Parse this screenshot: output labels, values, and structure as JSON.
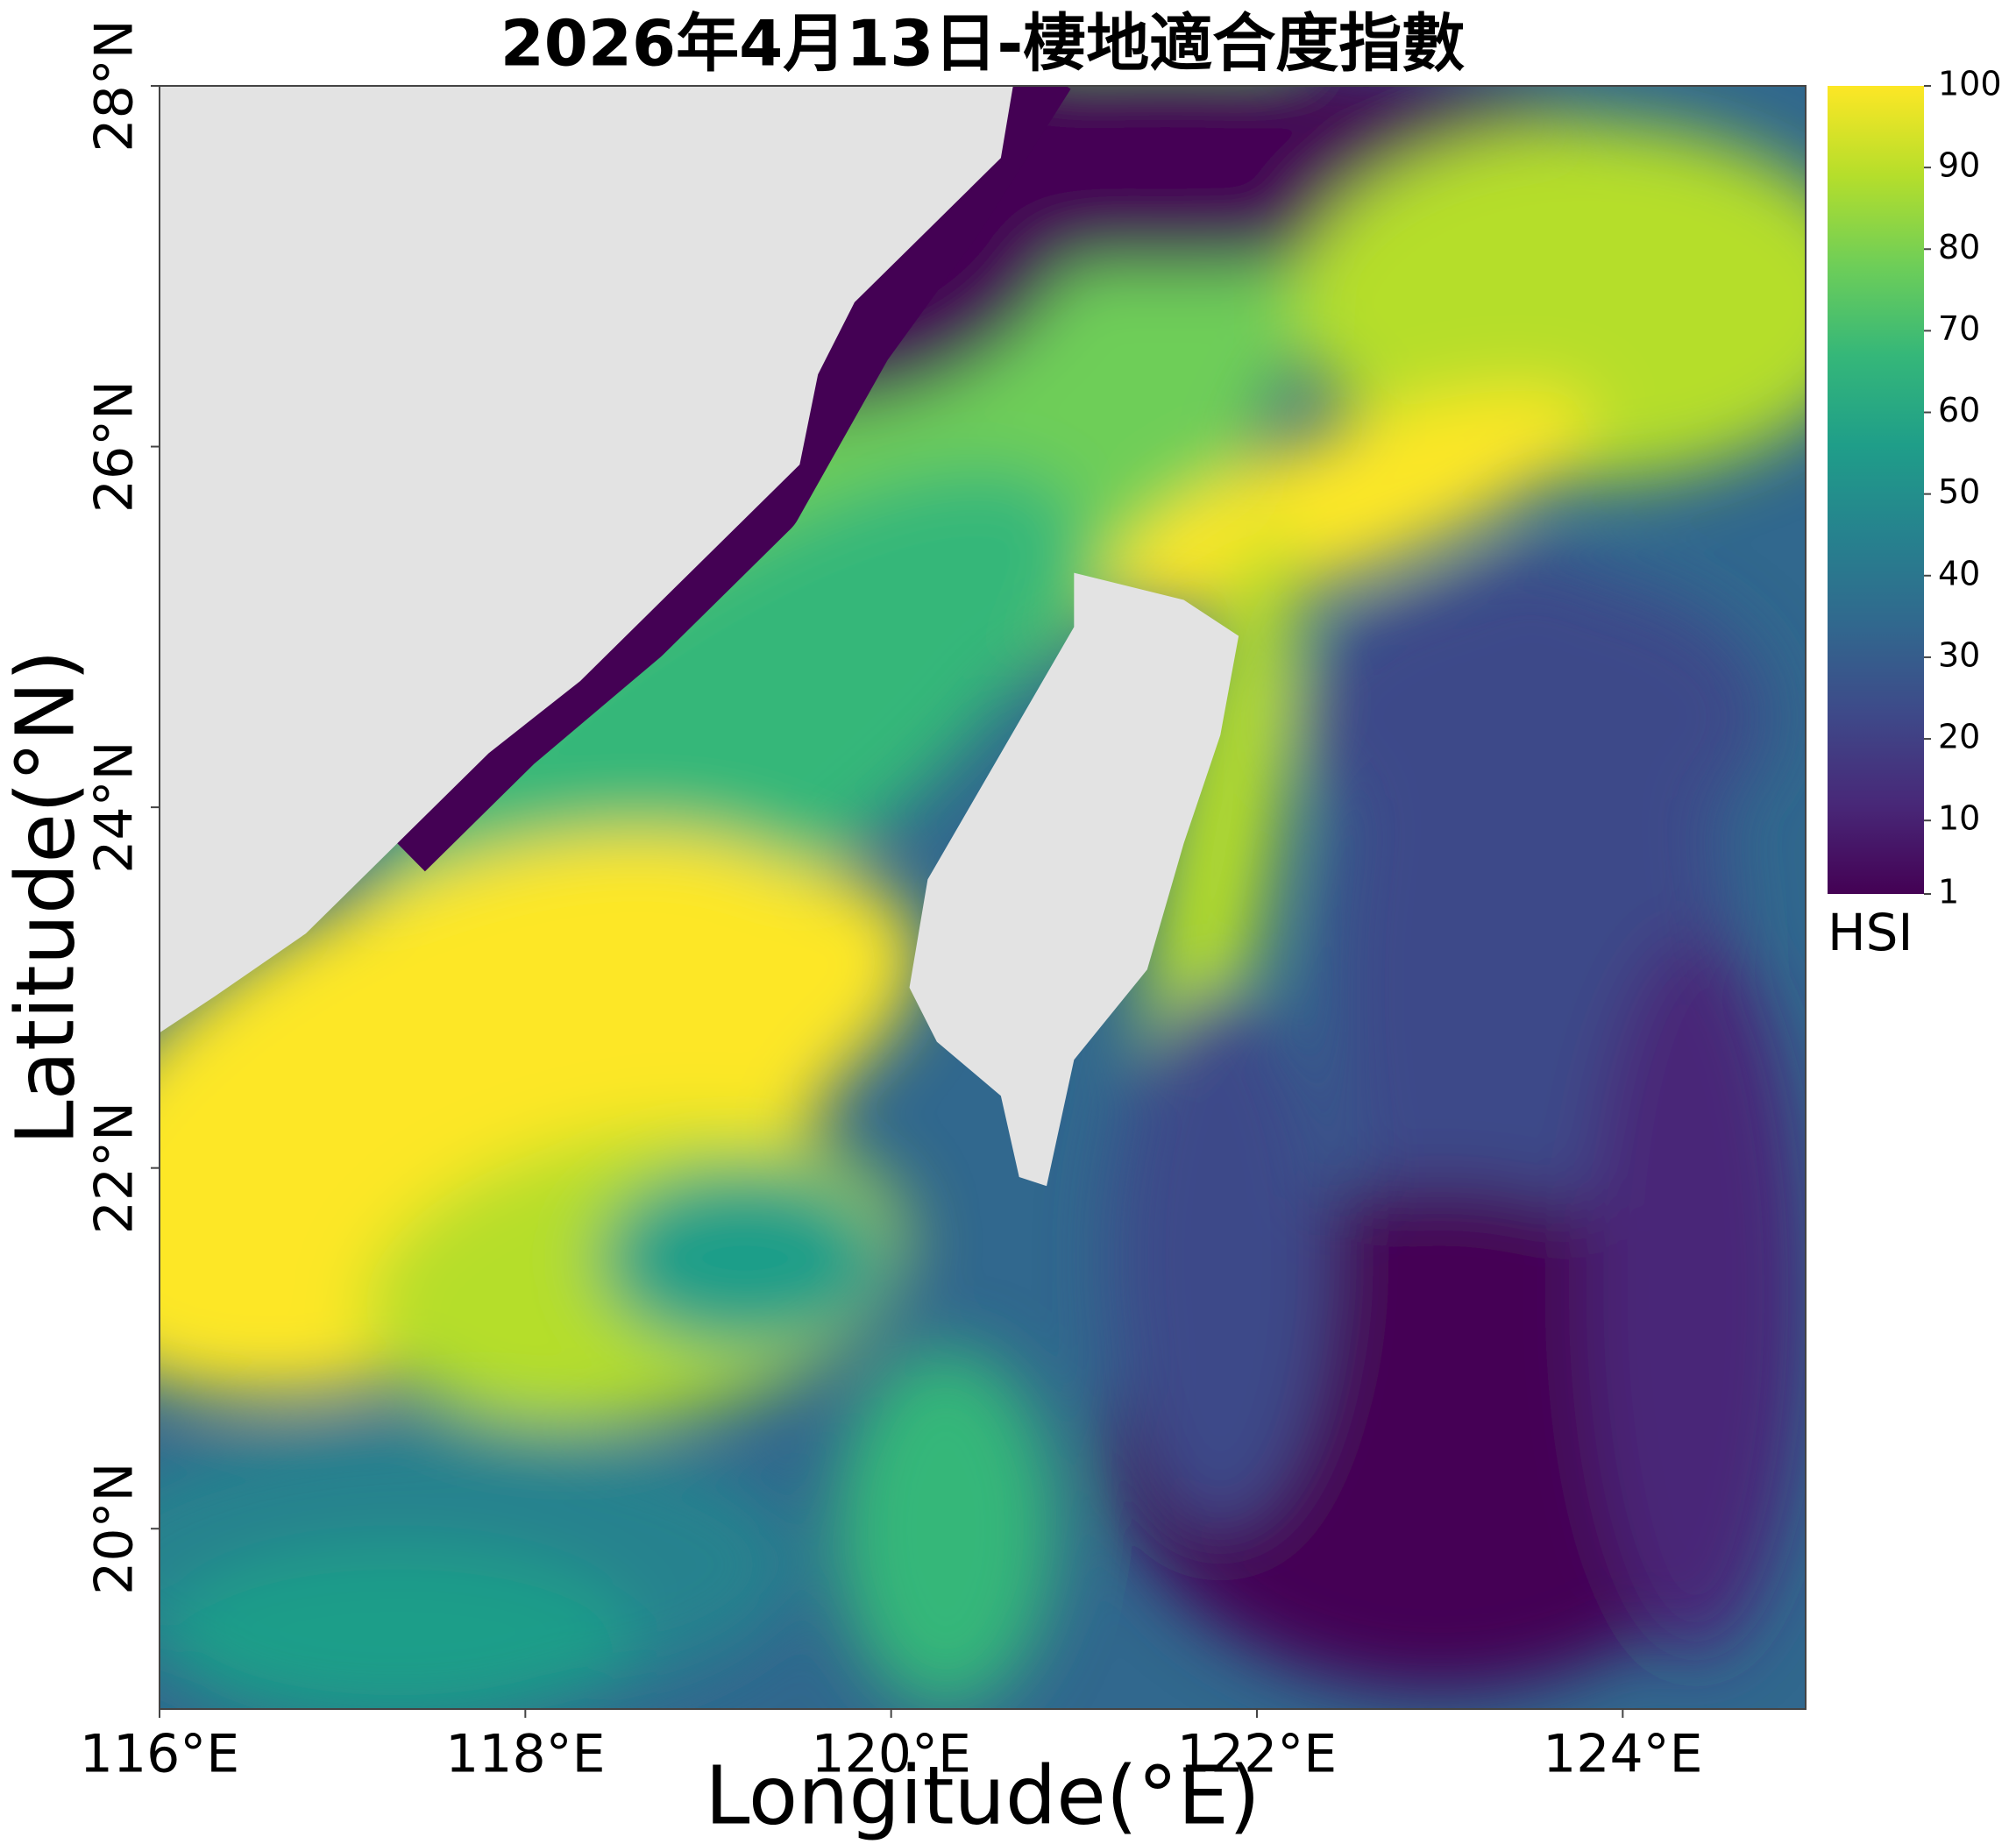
{
  "chart_data": {
    "type": "heatmap",
    "title": "2026年4月13日-棲地適合度指數",
    "x_label": "Longitude(°E)",
    "y_label": "Latitude(°N)",
    "xlim": [
      116,
      125
    ],
    "ylim": [
      19,
      28
    ],
    "xticks": [
      {
        "value": 116,
        "label": "116°E"
      },
      {
        "value": 118,
        "label": "118°E"
      },
      {
        "value": 120,
        "label": "120°E"
      },
      {
        "value": 122,
        "label": "122°E"
      },
      {
        "value": 124,
        "label": "124°E"
      }
    ],
    "yticks": [
      {
        "value": 20,
        "label": "20°N"
      },
      {
        "value": 22,
        "label": "22°N"
      },
      {
        "value": 24,
        "label": "24°N"
      },
      {
        "value": 26,
        "label": "26°N"
      },
      {
        "value": 28,
        "label": "28°N"
      }
    ],
    "colorbar_label": "HSI",
    "colormap": "viridis",
    "clim": [
      1,
      100
    ],
    "colorbar_ticks": [
      1,
      10,
      20,
      30,
      40,
      50,
      60,
      70,
      80,
      90,
      100
    ]
  }
}
